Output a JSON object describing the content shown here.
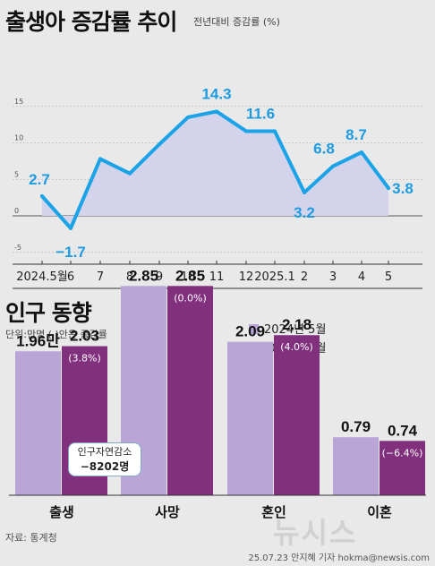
{
  "line_section": {
    "title": "출생아 증감률 추이",
    "subtitle": "전년대비 증감률 (%)"
  },
  "bar_section": {
    "title": "인구 동향",
    "subtitle": "단위:만명 ( )안은 증감률",
    "callout_label": "인구자연감소",
    "callout_value": "−8202명"
  },
  "source": "자료: 통계청",
  "credit": "25.07.23 안지혜 기자 hokma@newsis.com",
  "watermark": "뉴시스",
  "colors": {
    "line": "#1aa3e6",
    "area": "#d3d3ec",
    "bar2024": "#b9a6d6",
    "bar2025": "#80307d",
    "label_blue": "#1e9be0"
  },
  "chart_data": [
    {
      "type": "line",
      "title": "출생아 증감률 추이",
      "ylabel": "전년대비 증감률 (%)",
      "categories": [
        "2024.5월",
        "6",
        "7",
        "8",
        "9",
        "10",
        "11",
        "12",
        "2025.1",
        "2",
        "3",
        "4",
        "5"
      ],
      "values": [
        2.7,
        -1.7,
        7.8,
        5.8,
        9.8,
        13.5,
        14.3,
        11.6,
        11.6,
        3.2,
        6.8,
        8.7,
        3.8
      ],
      "labels": {
        "0": "2.7",
        "1": "−1.7",
        "6": "14.3",
        "7": "11.6",
        "9": "3.2",
        "10": "6.8",
        "11": "8.7",
        "12": "3.8"
      },
      "yticks": [
        "15",
        "10",
        "5",
        "0",
        "-5"
      ],
      "ylim": [
        -5,
        15
      ]
    },
    {
      "type": "bar",
      "title": "인구 동향",
      "categories": [
        "출생",
        "사망",
        "혼인",
        "이혼"
      ],
      "series": [
        {
          "name": "2024년 5월",
          "values": [
            1.96,
            2.85,
            2.09,
            0.79
          ],
          "labels": [
            "1.96만",
            "2.85",
            "2.09",
            "0.79"
          ]
        },
        {
          "name": "2025년 5월",
          "values": [
            2.03,
            2.85,
            2.18,
            0.74
          ],
          "labels": [
            "2.03",
            "2.85",
            "2.18",
            "0.74"
          ],
          "change": [
            "(3.8%)",
            "(0.0%)",
            "(4.0%)",
            "(−6.4%)"
          ]
        }
      ]
    }
  ]
}
